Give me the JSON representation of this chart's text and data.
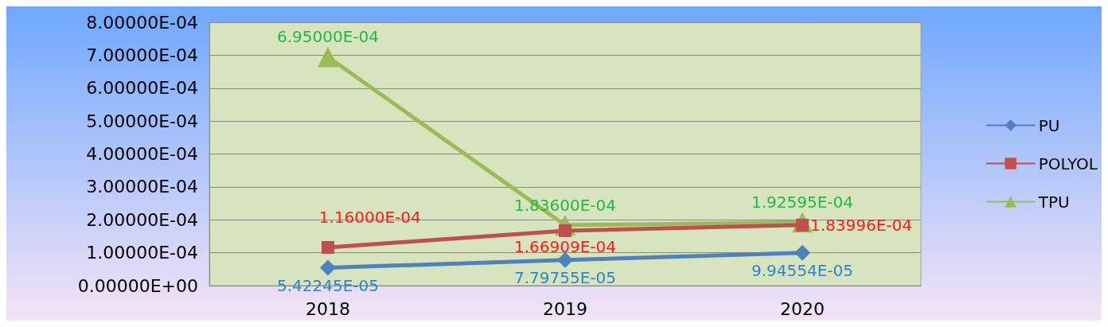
{
  "chart_data": {
    "type": "line",
    "categories": [
      "2018",
      "2019",
      "2020"
    ],
    "series": [
      {
        "name": "PU",
        "color": "#4f81bd",
        "marker": "diamond",
        "values": [
          5.42245e-05,
          7.79755e-05,
          9.94554e-05
        ],
        "value_labels": [
          "5.42245E-05",
          "7.79755E-05",
          "9.94554E-05"
        ]
      },
      {
        "name": "POLYOL",
        "color": "#c0504d",
        "marker": "square",
        "values": [
          0.000116,
          0.000166909,
          0.000183996
        ],
        "value_labels": [
          "1.16000E-04",
          "1.66909E-04",
          "1.83996E-04"
        ]
      },
      {
        "name": "TPU",
        "color": "#9bbb59",
        "marker": "triangle",
        "values": [
          0.000695,
          0.0001836,
          0.000192595
        ],
        "value_labels": [
          "6.95000E-04",
          "1.83600E-04",
          "1.92595E-04"
        ]
      }
    ],
    "ylim": [
      0,
      0.0008
    ],
    "yticks": [
      {
        "value": 0,
        "label": "0.00000E+00"
      },
      {
        "value": 0.0001,
        "label": "1.00000E-04"
      },
      {
        "value": 0.0002,
        "label": "2.00000E-04"
      },
      {
        "value": 0.0003,
        "label": "3.00000E-04"
      },
      {
        "value": 0.0004,
        "label": "4.00000E-04"
      },
      {
        "value": 0.0005,
        "label": "5.00000E-04"
      },
      {
        "value": 0.0006,
        "label": "6.00000E-04"
      },
      {
        "value": 0.0007,
        "label": "7.00000E-04"
      },
      {
        "value": 0.0008,
        "label": "8.00000E-04"
      }
    ],
    "grid": "y",
    "legend": "right"
  }
}
